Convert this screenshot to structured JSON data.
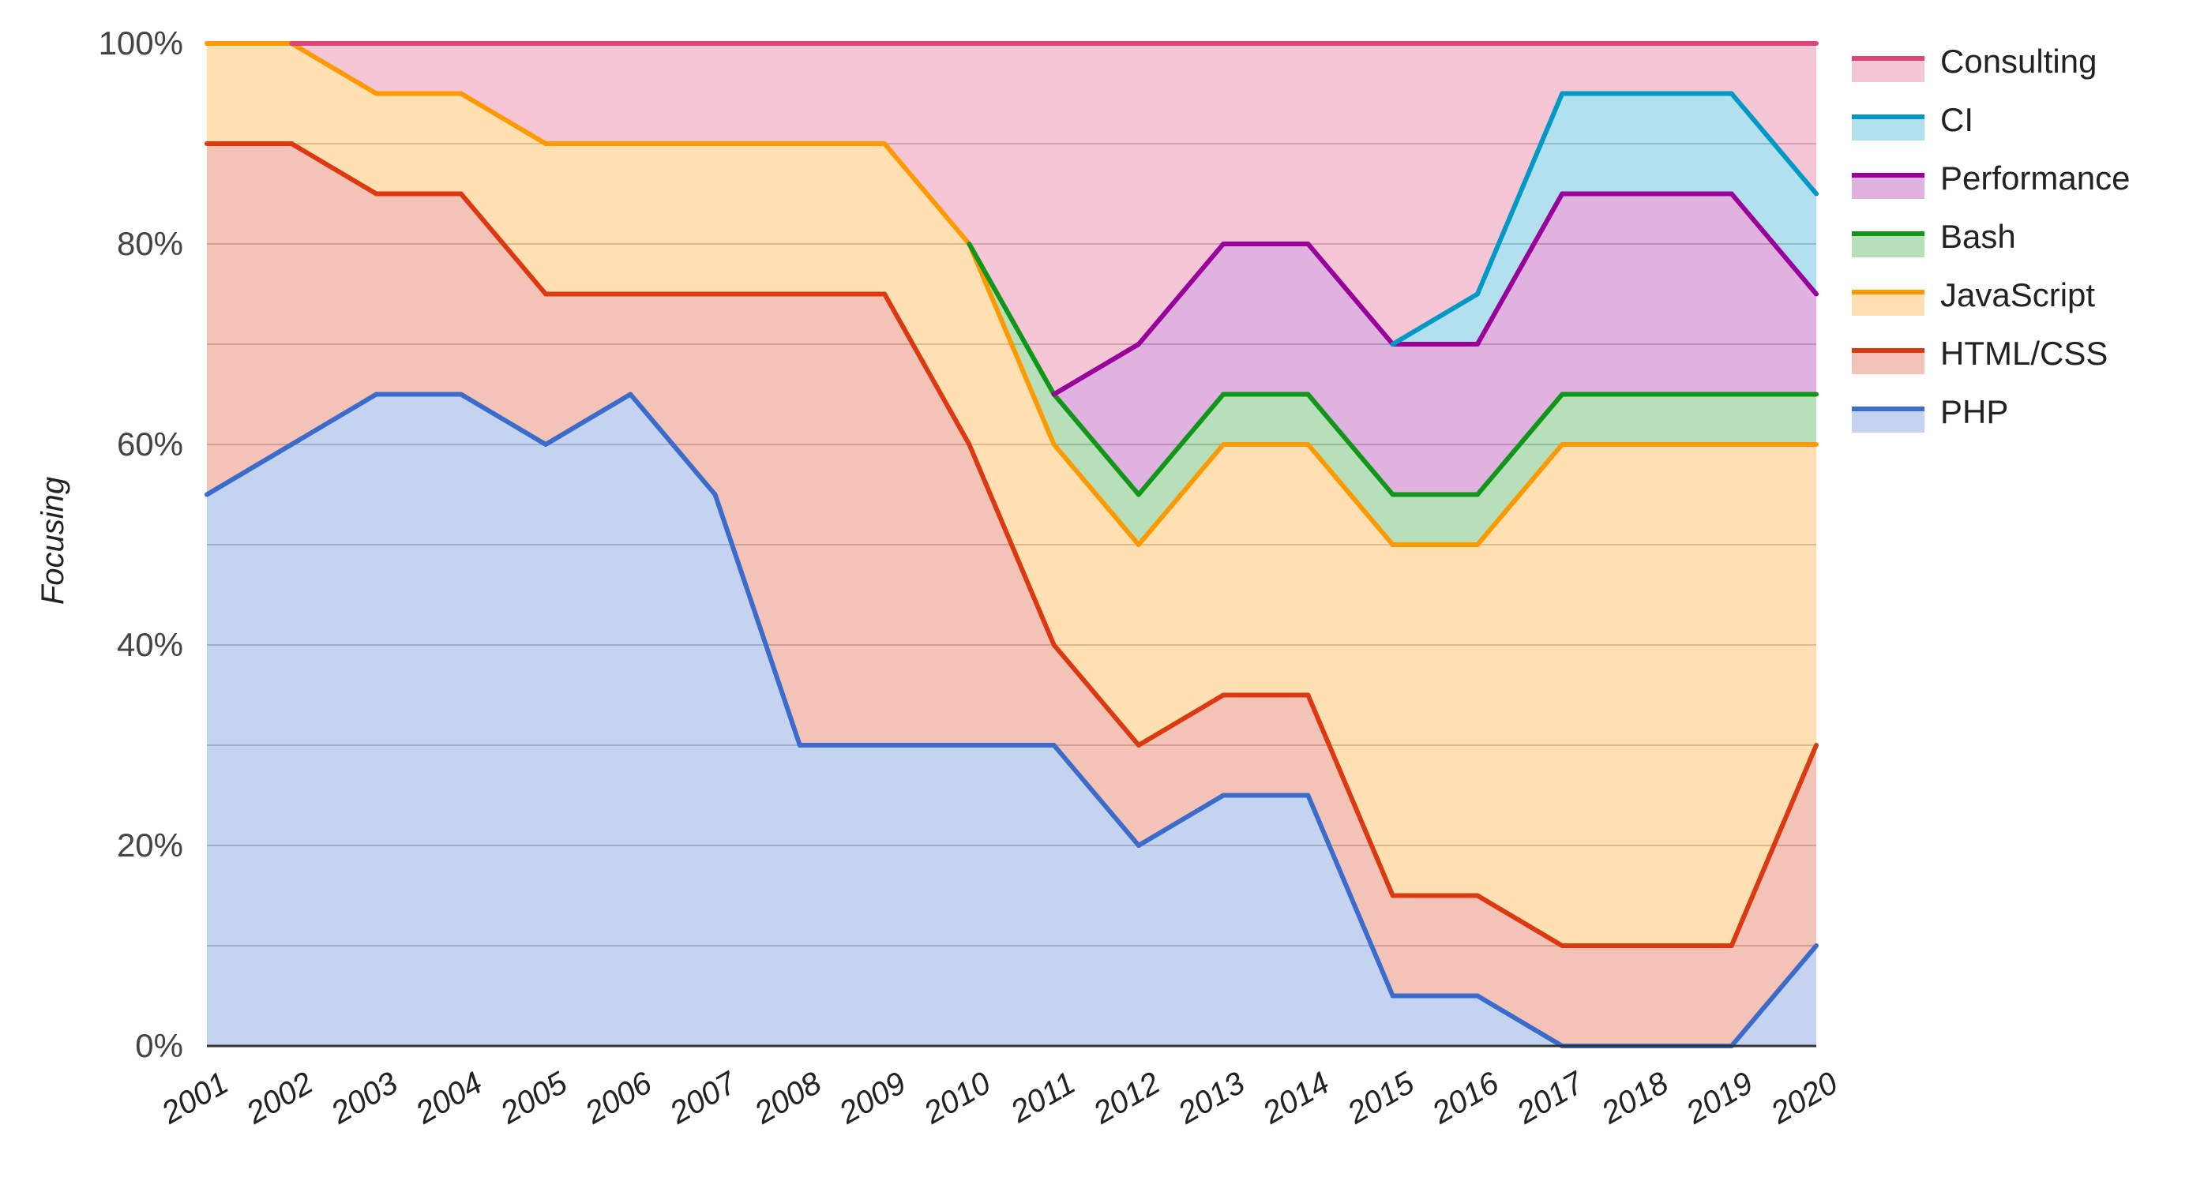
{
  "chart_data": {
    "type": "area",
    "stacked": true,
    "title": "",
    "xlabel": "",
    "ylabel": "Focusing",
    "ylim": [
      0,
      100
    ],
    "y_tick_labels": [
      "0%",
      "20%",
      "40%",
      "60%",
      "80%",
      "100%"
    ],
    "x": [
      "2001",
      "2002",
      "2003",
      "2004",
      "2005",
      "2006",
      "2007",
      "2008",
      "2009",
      "2010",
      "2011",
      "2012",
      "2013",
      "2014",
      "2015",
      "2016",
      "2017",
      "2018",
      "2019",
      "2020"
    ],
    "grid": true,
    "legend_position": "right",
    "series": [
      {
        "name": "PHP",
        "color": "#3b6ccc",
        "values": [
          55,
          60,
          65,
          65,
          60,
          65,
          55,
          30,
          30,
          30,
          30,
          20,
          25,
          25,
          5,
          5,
          0,
          0,
          0,
          10
        ]
      },
      {
        "name": "HTML/CSS",
        "color": "#dc3912",
        "values": [
          35,
          30,
          20,
          20,
          15,
          10,
          20,
          45,
          45,
          30,
          10,
          10,
          10,
          10,
          10,
          10,
          10,
          10,
          10,
          20
        ]
      },
      {
        "name": "JavaScript",
        "color": "#ff9900",
        "values": [
          10,
          10,
          10,
          10,
          15,
          15,
          15,
          15,
          15,
          20,
          20,
          20,
          25,
          25,
          35,
          35,
          50,
          50,
          50,
          30
        ]
      },
      {
        "name": "Bash",
        "color": "#109618",
        "values": [
          0,
          0,
          0,
          0,
          0,
          0,
          0,
          0,
          0,
          0,
          5,
          5,
          5,
          5,
          5,
          5,
          5,
          5,
          5,
          5
        ]
      },
      {
        "name": "Performance",
        "color": "#990099",
        "values": [
          0,
          0,
          0,
          0,
          0,
          0,
          0,
          0,
          0,
          0,
          0,
          15,
          15,
          15,
          15,
          15,
          20,
          20,
          20,
          10
        ]
      },
      {
        "name": "CI",
        "color": "#0099c6",
        "values": [
          0,
          0,
          0,
          0,
          0,
          0,
          0,
          0,
          0,
          0,
          0,
          0,
          0,
          0,
          0,
          5,
          10,
          10,
          10,
          10
        ]
      },
      {
        "name": "Consulting",
        "color": "#dd4477",
        "values": [
          0,
          0,
          5,
          5,
          10,
          10,
          10,
          10,
          10,
          20,
          35,
          30,
          20,
          20,
          30,
          25,
          5,
          5,
          5,
          15
        ]
      }
    ],
    "legend_order": [
      "Consulting",
      "CI",
      "Performance",
      "Bash",
      "JavaScript",
      "HTML/CSS",
      "PHP"
    ]
  }
}
